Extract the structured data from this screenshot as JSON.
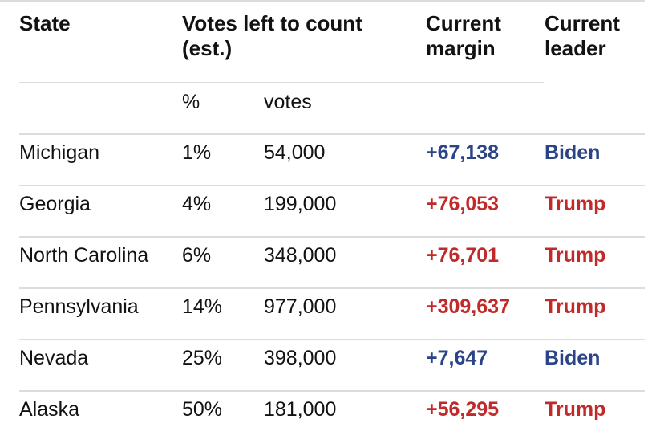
{
  "header": {
    "state": "State",
    "votes_left": "Votes left to count",
    "votes_left_sub": "(est.)",
    "margin_line1": "Current",
    "margin_line2": "margin",
    "leader_line1": "Current",
    "leader_line2": "leader",
    "sub_pct": "%",
    "sub_votes": "votes"
  },
  "colors": {
    "biden": "#2b4387",
    "trump": "#c12a2a"
  },
  "rows": [
    {
      "state": "Michigan",
      "pct": "1%",
      "votes": "54,000",
      "margin": "+67,138",
      "leader": "Biden"
    },
    {
      "state": "Georgia",
      "pct": "4%",
      "votes": "199,000",
      "margin": "+76,053",
      "leader": "Trump"
    },
    {
      "state": "North Carolina",
      "pct": "6%",
      "votes": "348,000",
      "margin": "+76,701",
      "leader": "Trump"
    },
    {
      "state": "Pennsylvania",
      "pct": "14%",
      "votes": "977,000",
      "margin": "+309,637",
      "leader": "Trump"
    },
    {
      "state": "Nevada",
      "pct": "25%",
      "votes": "398,000",
      "margin": "+7,647",
      "leader": "Biden"
    },
    {
      "state": "Alaska",
      "pct": "50%",
      "votes": "181,000",
      "margin": "+56,295",
      "leader": "Trump"
    }
  ]
}
